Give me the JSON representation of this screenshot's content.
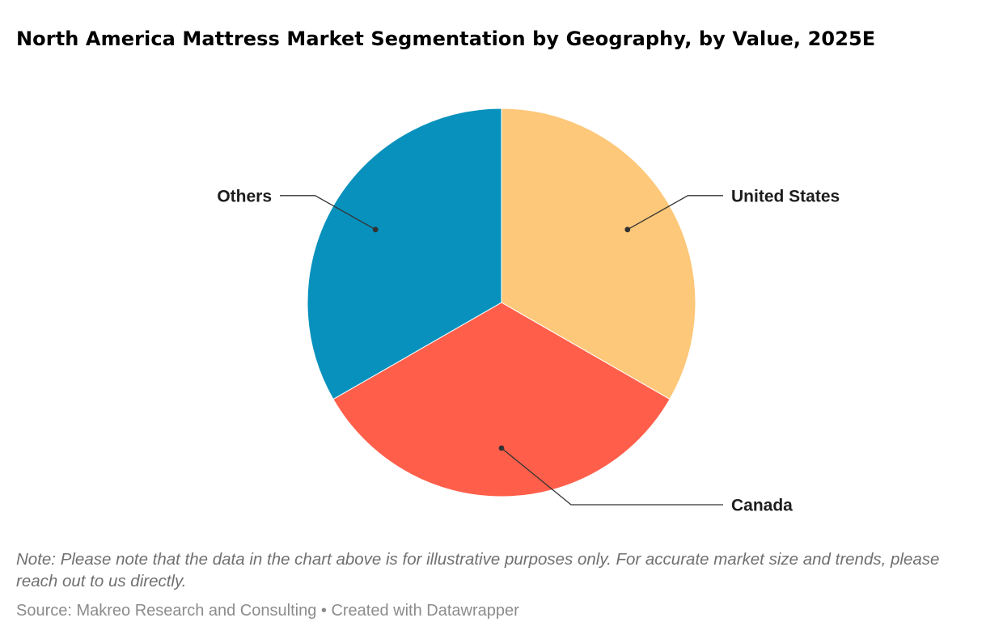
{
  "chart_data": {
    "type": "pie",
    "title": "North America Mattress Market Segmentation by Geography, by Value, 2025E",
    "slices": [
      {
        "label": "United States",
        "value": 33.3,
        "color": "#fdc879"
      },
      {
        "label": "Canada",
        "value": 33.4,
        "color": "#ff5f4a"
      },
      {
        "label": "Others",
        "value": 33.3,
        "color": "#0891bc"
      }
    ],
    "start_angle": "12 o'clock",
    "direction": "clockwise",
    "labels": "outside with leader lines"
  },
  "footer": {
    "note": "Note: Please note that the data in the chart above is for illustrative purposes only. For accurate market size and trends, please reach out to us directly.",
    "source_prefix": "Source: ",
    "source": "Makreo Research and Consulting",
    "separator": " • ",
    "credit": "Created with Datawrapper"
  }
}
